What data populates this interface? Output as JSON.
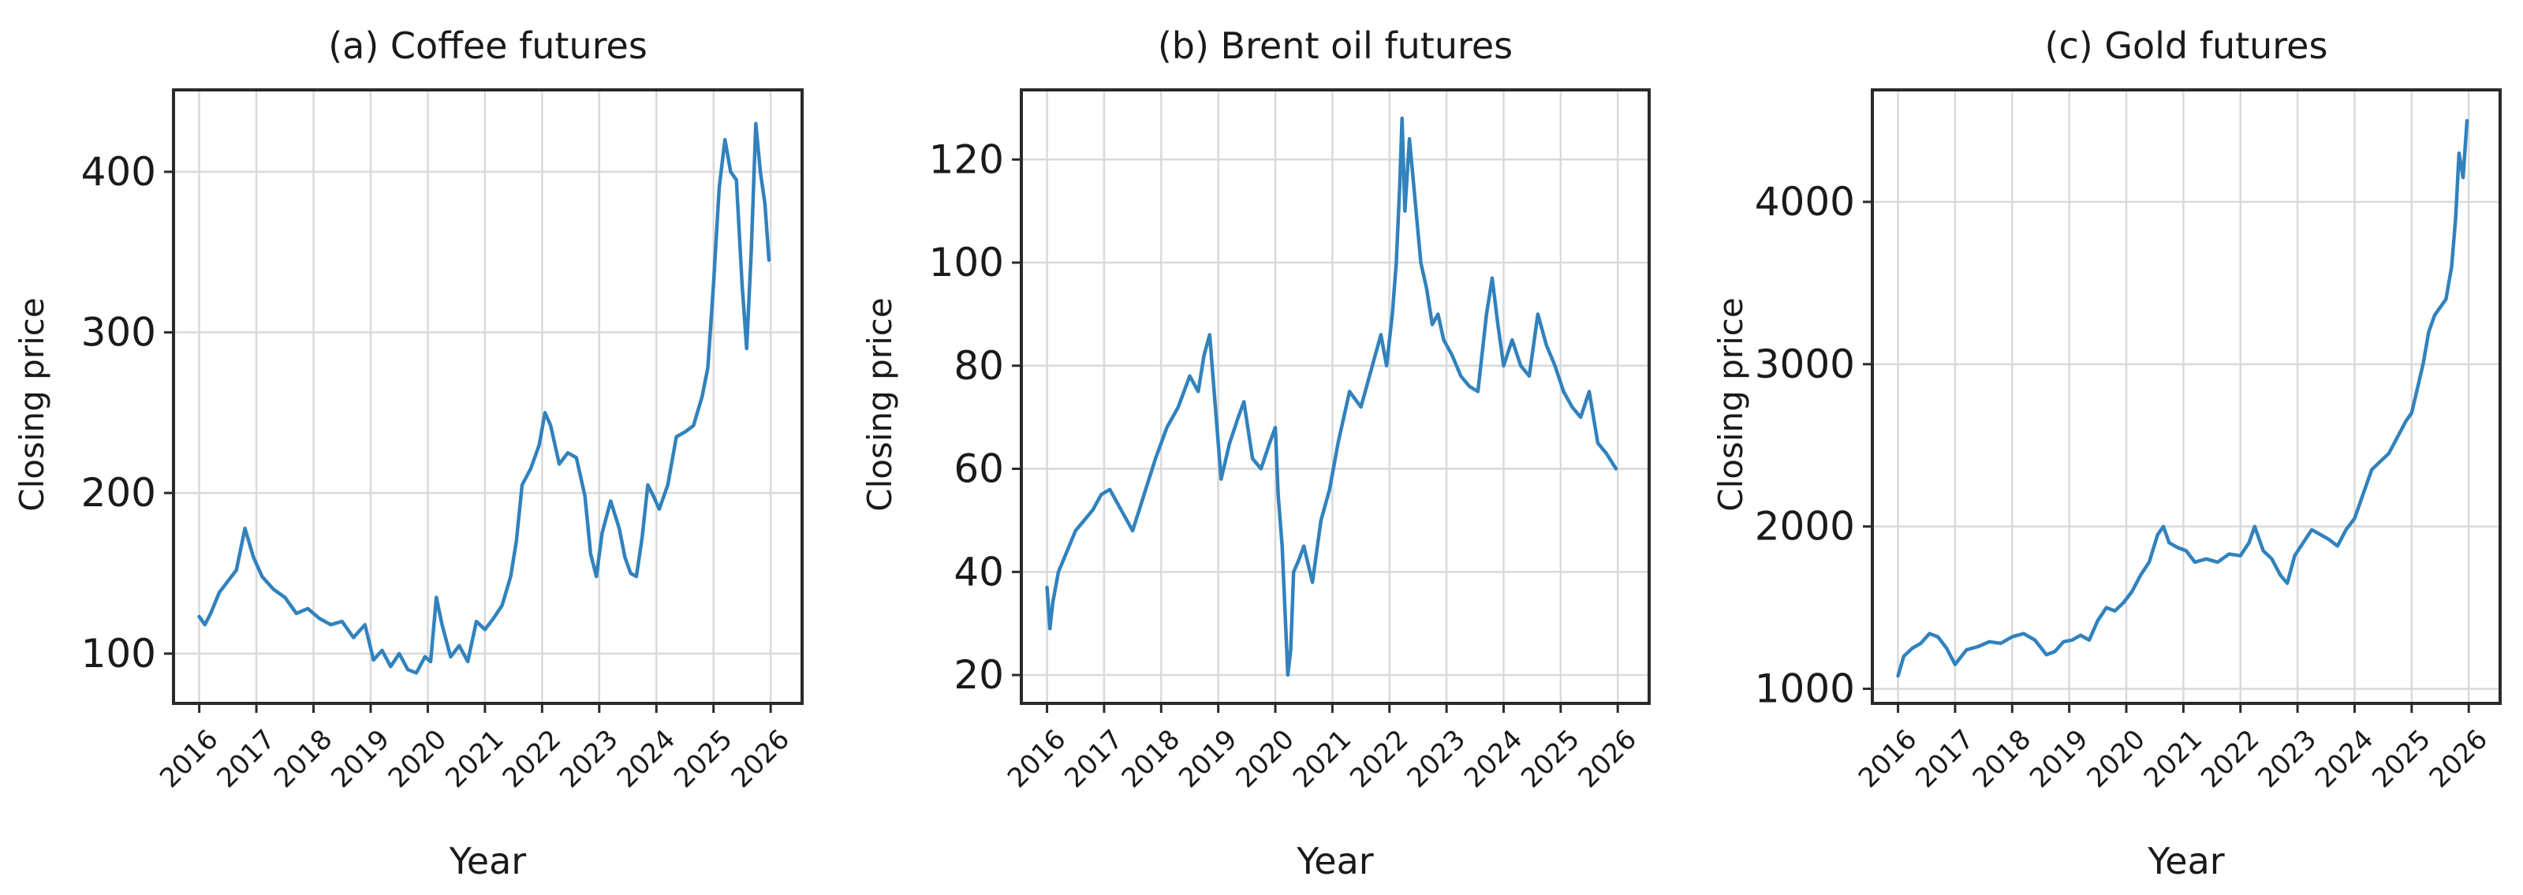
{
  "chart_data": [
    {
      "type": "line",
      "title": "(a) Coffee futures",
      "xlabel": "Year",
      "ylabel": "Closing price",
      "xlim": [
        2015.55,
        2026.55
      ],
      "ylim": [
        69,
        451
      ],
      "grid": true,
      "line_color": "#3182bd",
      "yticks": [
        100,
        200,
        300,
        400
      ],
      "xticks": [
        "2016",
        "2017",
        "2018",
        "2019",
        "2020",
        "2021",
        "2022",
        "2023",
        "2024",
        "2025",
        "2026"
      ],
      "series": [
        {
          "x": [
            2016.0,
            2016.1,
            2016.2,
            2016.35,
            2016.5,
            2016.65,
            2016.8,
            2016.95,
            2017.1,
            2017.3,
            2017.5,
            2017.7,
            2017.9,
            2018.1,
            2018.3,
            2018.5,
            2018.7,
            2018.9,
            2019.05,
            2019.2,
            2019.35,
            2019.5,
            2019.65,
            2019.8,
            2019.95,
            2020.05,
            2020.15,
            2020.25,
            2020.4,
            2020.55,
            2020.7,
            2020.85,
            2021.0,
            2021.15,
            2021.3,
            2021.45,
            2021.55,
            2021.65,
            2021.8,
            2021.95,
            2022.05,
            2022.15,
            2022.3,
            2022.45,
            2022.6,
            2022.75,
            2022.85,
            2022.95,
            2023.05,
            2023.2,
            2023.35,
            2023.45,
            2023.55,
            2023.65,
            2023.75,
            2023.85,
            2023.95,
            2024.05,
            2024.2,
            2024.35,
            2024.5,
            2024.65,
            2024.8,
            2024.9,
            2025.0,
            2025.1,
            2025.2,
            2025.3,
            2025.4,
            2025.5,
            2025.58,
            2025.66,
            2025.74,
            2025.82,
            2025.9,
            2025.97
          ],
          "y": [
            123,
            118,
            125,
            138,
            145,
            152,
            178,
            160,
            148,
            140,
            135,
            125,
            128,
            122,
            118,
            120,
            110,
            118,
            96,
            102,
            92,
            100,
            90,
            88,
            98,
            95,
            135,
            118,
            98,
            105,
            95,
            120,
            115,
            122,
            130,
            148,
            170,
            205,
            215,
            230,
            250,
            242,
            218,
            225,
            222,
            198,
            162,
            148,
            175,
            195,
            178,
            160,
            150,
            148,
            172,
            205,
            198,
            190,
            205,
            235,
            238,
            242,
            260,
            278,
            330,
            390,
            420,
            400,
            395,
            330,
            290,
            350,
            430,
            400,
            380,
            345
          ]
        }
      ]
    },
    {
      "type": "line",
      "title": "(b) Brent oil futures",
      "xlabel": "Year",
      "ylabel": "Closing price",
      "xlim": [
        2015.55,
        2026.55
      ],
      "ylim": [
        14.5,
        133.5
      ],
      "grid": true,
      "line_color": "#3182bd",
      "yticks": [
        20,
        40,
        60,
        80,
        100,
        120
      ],
      "xticks": [
        "2016",
        "2017",
        "2018",
        "2019",
        "2020",
        "2021",
        "2022",
        "2023",
        "2024",
        "2025",
        "2026"
      ],
      "series": [
        {
          "x": [
            2016.0,
            2016.05,
            2016.1,
            2016.2,
            2016.35,
            2016.5,
            2016.65,
            2016.8,
            2016.95,
            2017.1,
            2017.3,
            2017.5,
            2017.7,
            2017.9,
            2018.1,
            2018.3,
            2018.5,
            2018.65,
            2018.75,
            2018.85,
            2018.95,
            2019.05,
            2019.2,
            2019.35,
            2019.45,
            2019.6,
            2019.75,
            2019.9,
            2020.0,
            2020.05,
            2020.12,
            2020.18,
            2020.22,
            2020.27,
            2020.32,
            2020.4,
            2020.5,
            2020.65,
            2020.8,
            2020.95,
            2021.1,
            2021.3,
            2021.5,
            2021.7,
            2021.85,
            2021.95,
            2022.05,
            2022.12,
            2022.18,
            2022.22,
            2022.27,
            2022.35,
            2022.45,
            2022.55,
            2022.65,
            2022.75,
            2022.85,
            2022.95,
            2023.1,
            2023.25,
            2023.4,
            2023.55,
            2023.7,
            2023.8,
            2023.9,
            2024.0,
            2024.15,
            2024.3,
            2024.45,
            2024.6,
            2024.75,
            2024.9,
            2025.05,
            2025.2,
            2025.35,
            2025.5,
            2025.65,
            2025.8,
            2025.97
          ],
          "y": [
            37,
            29,
            34,
            40,
            44,
            48,
            50,
            52,
            55,
            56,
            52,
            48,
            55,
            62,
            68,
            72,
            78,
            75,
            82,
            86,
            72,
            58,
            65,
            70,
            73,
            62,
            60,
            65,
            68,
            55,
            45,
            30,
            20,
            25,
            40,
            42,
            45,
            38,
            50,
            56,
            65,
            75,
            72,
            80,
            86,
            80,
            90,
            100,
            115,
            128,
            110,
            124,
            112,
            100,
            95,
            88,
            90,
            85,
            82,
            78,
            76,
            75,
            90,
            97,
            88,
            80,
            85,
            80,
            78,
            90,
            84,
            80,
            75,
            72,
            70,
            75,
            65,
            63,
            60
          ]
        }
      ]
    },
    {
      "type": "line",
      "title": "(c) Gold futures",
      "xlabel": "Year",
      "ylabel": "Closing price",
      "xlim": [
        2015.55,
        2026.55
      ],
      "ylim": [
        910,
        4690
      ],
      "grid": true,
      "line_color": "#3182bd",
      "yticks": [
        1000,
        2000,
        3000,
        4000
      ],
      "xticks": [
        "2016",
        "2017",
        "2018",
        "2019",
        "2020",
        "2021",
        "2022",
        "2023",
        "2024",
        "2025",
        "2026"
      ],
      "series": [
        {
          "x": [
            2016.0,
            2016.1,
            2016.25,
            2016.4,
            2016.55,
            2016.7,
            2016.85,
            2017.0,
            2017.2,
            2017.4,
            2017.6,
            2017.8,
            2018.0,
            2018.2,
            2018.4,
            2018.6,
            2018.75,
            2018.9,
            2019.05,
            2019.2,
            2019.35,
            2019.5,
            2019.65,
            2019.8,
            2019.95,
            2020.1,
            2020.25,
            2020.4,
            2020.55,
            2020.65,
            2020.75,
            2020.9,
            2021.05,
            2021.2,
            2021.4,
            2021.6,
            2021.8,
            2022.0,
            2022.15,
            2022.25,
            2022.4,
            2022.55,
            2022.7,
            2022.82,
            2022.95,
            2023.1,
            2023.25,
            2023.4,
            2023.55,
            2023.7,
            2023.85,
            2024.0,
            2024.15,
            2024.3,
            2024.45,
            2024.6,
            2024.75,
            2024.9,
            2025.0,
            2025.1,
            2025.2,
            2025.3,
            2025.4,
            2025.5,
            2025.6,
            2025.7,
            2025.77,
            2025.83,
            2025.9,
            2025.97
          ],
          "y": [
            1080,
            1200,
            1250,
            1280,
            1340,
            1320,
            1250,
            1150,
            1240,
            1260,
            1290,
            1280,
            1320,
            1340,
            1300,
            1210,
            1230,
            1290,
            1300,
            1330,
            1300,
            1420,
            1500,
            1480,
            1530,
            1600,
            1700,
            1780,
            1950,
            2000,
            1900,
            1870,
            1850,
            1780,
            1800,
            1780,
            1830,
            1820,
            1900,
            2000,
            1850,
            1800,
            1700,
            1650,
            1820,
            1900,
            1980,
            1950,
            1920,
            1880,
            1980,
            2050,
            2200,
            2350,
            2400,
            2450,
            2550,
            2650,
            2700,
            2850,
            3000,
            3200,
            3300,
            3350,
            3400,
            3600,
            3900,
            4300,
            4150,
            4500
          ]
        }
      ]
    }
  ]
}
